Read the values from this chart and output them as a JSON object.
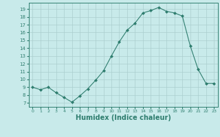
{
  "x": [
    0,
    1,
    2,
    3,
    4,
    5,
    6,
    7,
    8,
    9,
    10,
    11,
    12,
    13,
    14,
    15,
    16,
    17,
    18,
    19,
    20,
    21,
    22,
    23
  ],
  "y": [
    9,
    8.7,
    9,
    8.3,
    7.7,
    7.1,
    7.9,
    8.8,
    9.9,
    11.1,
    13.0,
    14.8,
    16.3,
    17.2,
    18.5,
    18.8,
    19.2,
    18.7,
    18.5,
    18.1,
    14.3,
    11.3,
    9.5,
    9.5
  ],
  "line_color": "#2e7d6e",
  "marker": "D",
  "marker_size": 2,
  "bg_color": "#c8eaea",
  "grid_color": "#aacece",
  "tick_color": "#2e7d6e",
  "xlabel": "Humidex (Indice chaleur)",
  "xlabel_fontsize": 7,
  "ylabel_ticks": [
    7,
    8,
    9,
    10,
    11,
    12,
    13,
    14,
    15,
    16,
    17,
    18,
    19
  ],
  "xlim": [
    -0.5,
    23.5
  ],
  "ylim": [
    6.5,
    19.8
  ]
}
